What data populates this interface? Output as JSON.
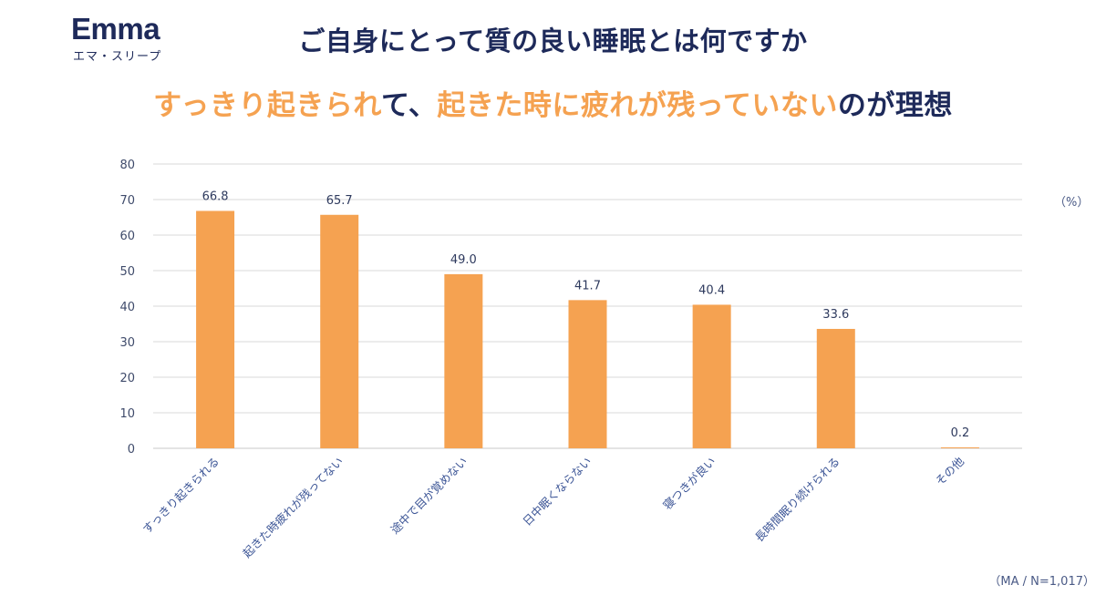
{
  "logo": {
    "wordmark": "Emma",
    "sub": "エマ・スリープ"
  },
  "header": {
    "title": "ご自身にとって質の良い睡眠とは何ですか",
    "subtitle_parts": [
      {
        "text": "すっきり起きられ",
        "tone": "accent"
      },
      {
        "text": "て、",
        "tone": "dark"
      },
      {
        "text": "起きた時に疲れが残っていない",
        "tone": "accent"
      },
      {
        "text": "のが理想",
        "tone": "dark"
      }
    ]
  },
  "colors": {
    "accent": "#f5a251",
    "dark": "#1e2a5a",
    "bar": "#f5a251",
    "grid": "#d9d9d9",
    "tick_label": "#3c5596"
  },
  "chart_data": {
    "type": "bar",
    "categories": [
      "すっきり起きられる",
      "起きた時疲れが残ってない",
      "途中で目が覚めない",
      "日中眠くならない",
      "寝つきが良い",
      "長時間眠り続けられる",
      "その他"
    ],
    "values": [
      66.8,
      65.7,
      49.0,
      41.7,
      40.4,
      33.6,
      0.2
    ],
    "value_labels": [
      "66.8",
      "65.7",
      "49.0",
      "41.7",
      "40.4",
      "33.6",
      "0.2"
    ],
    "ylim": [
      0,
      80
    ],
    "yticks": [
      0,
      10,
      20,
      30,
      40,
      50,
      60,
      70,
      80
    ],
    "grid": true,
    "unit_label": "（%）",
    "note": "（MA / N=1,017）"
  }
}
